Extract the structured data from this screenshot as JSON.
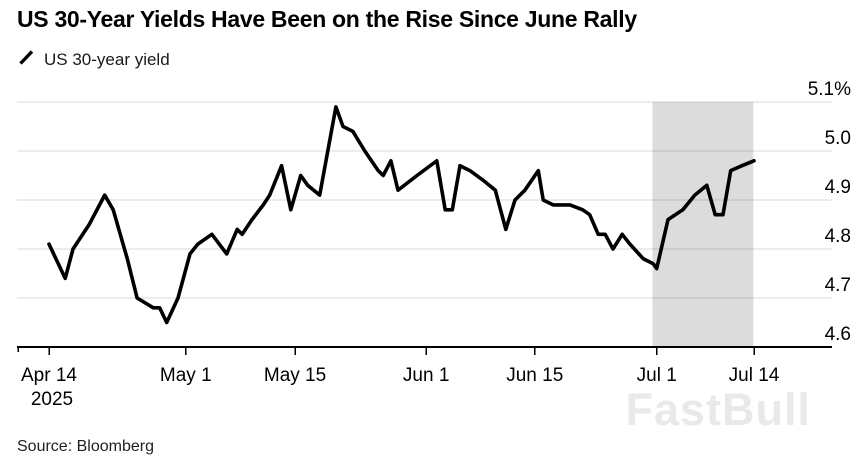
{
  "header": {
    "title": "US 30-Year Yields Have Been on the Rise Since June Rally",
    "legend": {
      "marker": "slash-icon",
      "label": "US 30-year yield"
    }
  },
  "footer": {
    "source": "Source: Bloomberg",
    "watermark": "FastBull"
  },
  "colors": {
    "line": "#000000",
    "grid": "#d9d9d9",
    "highlight_band": "#dcdcdc",
    "axis": "#000000",
    "text": "#000000",
    "watermark": "#e9e9e9"
  },
  "chart_data": {
    "type": "line",
    "title": "US 30-Year Yields Have Been on the Rise Since June Rally",
    "ylabel": "",
    "xlabel": "",
    "unit": "%",
    "grid": "horizontal",
    "legend_position": "top-left",
    "y_axis": {
      "range": [
        4.6,
        5.1
      ],
      "ticks": [
        {
          "value": 5.1,
          "label": "5.1%"
        },
        {
          "value": 5.0,
          "label": "5.0"
        },
        {
          "value": 4.9,
          "label": "4.9"
        },
        {
          "value": 4.8,
          "label": "4.8"
        },
        {
          "value": 4.7,
          "label": "4.7"
        },
        {
          "value": 4.6,
          "label": "4.6"
        }
      ]
    },
    "x_axis": {
      "start_label": "Apr 14 2025",
      "end_label": "Jul 14",
      "ticks": [
        {
          "pos": 0.0,
          "label": "Apr 14",
          "sublabel": "2025"
        },
        {
          "pos": 0.194,
          "label": "May 1"
        },
        {
          "pos": 0.349,
          "label": "May 15"
        },
        {
          "pos": 0.535,
          "label": "Jun 1"
        },
        {
          "pos": 0.689,
          "label": "Jun 15"
        },
        {
          "pos": 0.862,
          "label": "Jul 1"
        },
        {
          "pos": 1.0,
          "label": "Jul 14"
        }
      ]
    },
    "highlight_band": {
      "from": 0.856,
      "to": 0.999
    },
    "series": [
      {
        "name": "US 30-year yield",
        "points": [
          [
            0.0,
            4.81
          ],
          [
            0.023,
            4.74
          ],
          [
            0.034,
            4.8
          ],
          [
            0.057,
            4.85
          ],
          [
            0.079,
            4.91
          ],
          [
            0.091,
            4.88
          ],
          [
            0.111,
            4.78
          ],
          [
            0.118,
            4.74
          ],
          [
            0.125,
            4.7
          ],
          [
            0.148,
            4.68
          ],
          [
            0.157,
            4.68
          ],
          [
            0.167,
            4.65
          ],
          [
            0.183,
            4.7
          ],
          [
            0.2,
            4.79
          ],
          [
            0.211,
            4.81
          ],
          [
            0.231,
            4.83
          ],
          [
            0.252,
            4.79
          ],
          [
            0.267,
            4.84
          ],
          [
            0.274,
            4.83
          ],
          [
            0.288,
            4.86
          ],
          [
            0.304,
            4.89
          ],
          [
            0.313,
            4.91
          ],
          [
            0.33,
            4.97
          ],
          [
            0.343,
            4.88
          ],
          [
            0.357,
            4.95
          ],
          [
            0.367,
            4.93
          ],
          [
            0.384,
            4.91
          ],
          [
            0.407,
            5.09
          ],
          [
            0.417,
            5.05
          ],
          [
            0.431,
            5.04
          ],
          [
            0.448,
            5.0
          ],
          [
            0.467,
            4.96
          ],
          [
            0.474,
            4.95
          ],
          [
            0.485,
            4.98
          ],
          [
            0.495,
            4.92
          ],
          [
            0.522,
            4.95
          ],
          [
            0.55,
            4.98
          ],
          [
            0.562,
            4.88
          ],
          [
            0.572,
            4.88
          ],
          [
            0.583,
            4.97
          ],
          [
            0.597,
            4.96
          ],
          [
            0.616,
            4.94
          ],
          [
            0.633,
            4.92
          ],
          [
            0.648,
            4.84
          ],
          [
            0.661,
            4.9
          ],
          [
            0.675,
            4.92
          ],
          [
            0.694,
            4.96
          ],
          [
            0.701,
            4.9
          ],
          [
            0.715,
            4.89
          ],
          [
            0.739,
            4.89
          ],
          [
            0.757,
            4.88
          ],
          [
            0.767,
            4.87
          ],
          [
            0.779,
            4.83
          ],
          [
            0.789,
            4.83
          ],
          [
            0.8,
            4.8
          ],
          [
            0.813,
            4.83
          ],
          [
            0.824,
            4.81
          ],
          [
            0.843,
            4.78
          ],
          [
            0.857,
            4.77
          ],
          [
            0.862,
            4.76
          ],
          [
            0.878,
            4.86
          ],
          [
            0.899,
            4.88
          ],
          [
            0.916,
            4.91
          ],
          [
            0.933,
            4.93
          ],
          [
            0.945,
            4.87
          ],
          [
            0.956,
            4.87
          ],
          [
            0.967,
            4.96
          ],
          [
            0.983,
            4.97
          ],
          [
            1.0,
            4.98
          ]
        ]
      }
    ]
  }
}
